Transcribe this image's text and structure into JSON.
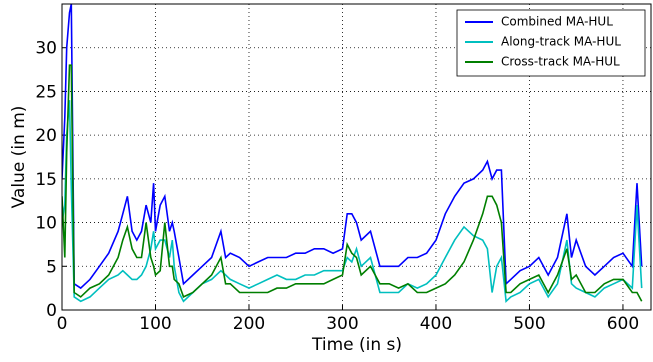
{
  "chart_data": {
    "type": "line",
    "xlabel": "Time (in s)",
    "ylabel": "Value (in m)",
    "x": [
      0,
      3,
      5,
      8,
      10,
      13,
      20,
      30,
      40,
      50,
      60,
      65,
      70,
      75,
      80,
      85,
      90,
      95,
      98,
      100,
      105,
      110,
      115,
      118,
      120,
      125,
      130,
      140,
      150,
      160,
      170,
      175,
      180,
      190,
      200,
      210,
      220,
      230,
      240,
      250,
      260,
      270,
      280,
      290,
      300,
      305,
      310,
      315,
      320,
      330,
      340,
      350,
      360,
      370,
      380,
      390,
      400,
      410,
      420,
      430,
      440,
      450,
      455,
      460,
      465,
      470,
      475,
      480,
      490,
      500,
      510,
      520,
      530,
      540,
      545,
      550,
      560,
      570,
      580,
      590,
      600,
      610,
      615,
      620
    ],
    "series": [
      {
        "name": "Combined MA-HUL",
        "color": "#0000ff",
        "values": [
          15,
          22,
          30,
          34,
          35,
          3,
          2.5,
          3.5,
          5,
          6.5,
          9,
          11,
          13,
          9,
          8,
          9,
          12,
          10,
          14.5,
          9,
          12,
          13,
          9,
          10,
          9,
          6,
          3,
          4,
          5,
          6,
          9,
          6,
          6.5,
          6,
          5,
          5.5,
          6,
          6,
          6,
          6.5,
          6.5,
          7,
          7,
          6.5,
          7,
          11,
          11,
          10,
          8,
          9,
          5,
          5,
          5,
          6,
          6,
          6.5,
          8,
          11,
          13,
          14.5,
          15,
          16,
          17,
          15,
          16,
          16,
          3,
          3.5,
          4.5,
          5,
          6,
          4,
          6,
          11,
          6,
          8,
          5,
          4,
          5,
          6,
          6.5,
          5,
          14.5,
          5
        ]
      },
      {
        "name": "Along-track MA-HUL",
        "color": "#00bfbf",
        "values": [
          10,
          12,
          20,
          24,
          14,
          1.5,
          1,
          1.5,
          2.5,
          3.5,
          4,
          4.5,
          4,
          3.5,
          3.5,
          4,
          5,
          7,
          9,
          7,
          8,
          8,
          6,
          8,
          5,
          2,
          1,
          2,
          3,
          3.5,
          4.5,
          4,
          3.5,
          3,
          2.5,
          3,
          3.5,
          4,
          3.5,
          3.5,
          4,
          4,
          4.5,
          4.5,
          4.5,
          6,
          5.5,
          7,
          5,
          6,
          2,
          2,
          2,
          3,
          2.5,
          3,
          4,
          6,
          8,
          9.5,
          8.5,
          8,
          7,
          2,
          5,
          6,
          1,
          1.5,
          2,
          3,
          3.5,
          1.5,
          3,
          8,
          3,
          2.5,
          2,
          1.5,
          2.5,
          3,
          3.5,
          2.5,
          12,
          2.5
        ]
      },
      {
        "name": "Cross-track MA-HUL",
        "color": "#007f00",
        "values": [
          13,
          6,
          18,
          28,
          28,
          2,
          1.5,
          2.5,
          3,
          4,
          6,
          8,
          9.5,
          7,
          6,
          6,
          10,
          6,
          5,
          4,
          4.5,
          10,
          5,
          5,
          3.5,
          3,
          1.5,
          2,
          3,
          4,
          6,
          3,
          3,
          2,
          2,
          2,
          2,
          2.5,
          2.5,
          3,
          3,
          3,
          3,
          3.5,
          4,
          7.5,
          6.5,
          6,
          4,
          5,
          3,
          3,
          2.5,
          3,
          2,
          2,
          2.5,
          3,
          4,
          5.5,
          8,
          11,
          13,
          13,
          12,
          10,
          2,
          2,
          3,
          3.5,
          4,
          2,
          4,
          7,
          3.5,
          4,
          2,
          2,
          3,
          3.5,
          3.5,
          2,
          2,
          1
        ]
      }
    ],
    "xlim": [
      0,
      630
    ],
    "ylim": [
      0,
      35
    ],
    "xticks": [
      0,
      100,
      200,
      300,
      400,
      500,
      600
    ],
    "yticks": [
      0,
      5,
      10,
      15,
      20,
      25,
      30
    ],
    "grid": true,
    "legend": "upper right"
  }
}
